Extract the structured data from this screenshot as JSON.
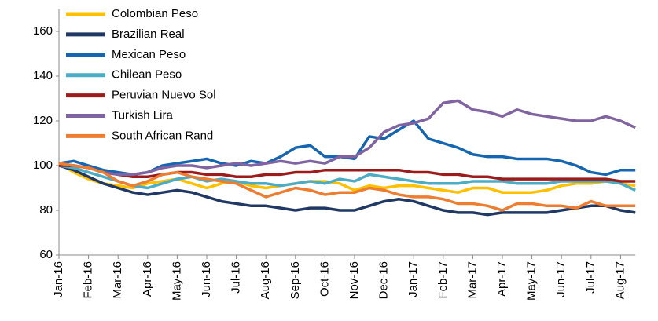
{
  "chart_data": {
    "type": "line",
    "categories": [
      "Jan-16",
      null,
      "Feb-16",
      null,
      "Mar-16",
      null,
      "Apr-16",
      null,
      "May-16",
      null,
      "Jun-16",
      null,
      "Jul-16",
      null,
      "Aug-16",
      null,
      "Sep-16",
      null,
      "Oct-16",
      null,
      "Nov-16",
      null,
      "Dec-16",
      null,
      "Jan-17",
      null,
      "Feb-17",
      null,
      "Mar-17",
      null,
      "Apr-17",
      null,
      "May-17",
      null,
      "Jun-17",
      null,
      "Jul-17",
      null,
      "Aug-17",
      null
    ],
    "series": [
      {
        "name": "Colombian Peso",
        "color": "#ffc000",
        "values": [
          101,
          97,
          94,
          92,
          91,
          90,
          92,
          93,
          94,
          92,
          90,
          92,
          93,
          91,
          90,
          91,
          92,
          93,
          93,
          92,
          89,
          91,
          90,
          91,
          91,
          90,
          89,
          88,
          90,
          90,
          88,
          88,
          88,
          89,
          91,
          92,
          92,
          93,
          92,
          91
        ]
      },
      {
        "name": "Brazilian Real",
        "color": "#1f3864",
        "values": [
          100,
          98,
          95,
          92,
          90,
          88,
          87,
          88,
          89,
          88,
          86,
          84,
          83,
          82,
          82,
          81,
          80,
          81,
          81,
          80,
          80,
          82,
          84,
          85,
          84,
          82,
          80,
          79,
          79,
          78,
          79,
          79,
          79,
          79,
          80,
          81,
          82,
          82,
          80,
          79
        ]
      },
      {
        "name": "Mexican Peso",
        "color": "#1565b0",
        "values": [
          101,
          102,
          100,
          98,
          97,
          96,
          97,
          100,
          101,
          102,
          103,
          101,
          100,
          102,
          101,
          104,
          108,
          109,
          104,
          104,
          103,
          113,
          112,
          116,
          120,
          112,
          110,
          108,
          105,
          104,
          104,
          103,
          103,
          103,
          102,
          100,
          97,
          96,
          98,
          98
        ]
      },
      {
        "name": "Chilean Peso",
        "color": "#4bacc6",
        "values": [
          100,
          99,
          97,
          95,
          93,
          91,
          90,
          92,
          94,
          95,
          93,
          94,
          93,
          92,
          92,
          91,
          92,
          93,
          92,
          94,
          93,
          96,
          95,
          94,
          93,
          92,
          92,
          92,
          93,
          93,
          93,
          92,
          92,
          92,
          93,
          93,
          93,
          93,
          92,
          89
        ]
      },
      {
        "name": "Peruvian Nuevo Sol",
        "color": "#9c1b1b",
        "values": [
          100,
          100,
          99,
          97,
          96,
          95,
          95,
          96,
          97,
          97,
          96,
          96,
          95,
          95,
          96,
          96,
          97,
          97,
          98,
          98,
          98,
          98,
          98,
          98,
          97,
          97,
          96,
          96,
          95,
          95,
          94,
          94,
          94,
          94,
          94,
          94,
          94,
          94,
          93,
          93
        ]
      },
      {
        "name": "Turkish Lira",
        "color": "#8064a2",
        "values": [
          101,
          100,
          99,
          97,
          96,
          96,
          97,
          99,
          100,
          100,
          99,
          100,
          101,
          100,
          101,
          102,
          101,
          102,
          101,
          104,
          104,
          108,
          115,
          118,
          119,
          121,
          128,
          129,
          125,
          124,
          122,
          125,
          123,
          122,
          121,
          120,
          120,
          122,
          120,
          117
        ]
      },
      {
        "name": "South African Rand",
        "color": "#ed7d31",
        "values": [
          101,
          100,
          99,
          97,
          93,
          91,
          93,
          96,
          97,
          95,
          94,
          93,
          92,
          89,
          86,
          88,
          90,
          89,
          87,
          88,
          88,
          90,
          89,
          87,
          86,
          86,
          85,
          83,
          83,
          82,
          80,
          83,
          83,
          82,
          82,
          81,
          84,
          82,
          82,
          82
        ]
      }
    ],
    "ylim": [
      60,
      170
    ],
    "yticks": [
      60,
      80,
      100,
      120,
      140,
      160
    ],
    "grid": false,
    "legend": "upper left"
  }
}
